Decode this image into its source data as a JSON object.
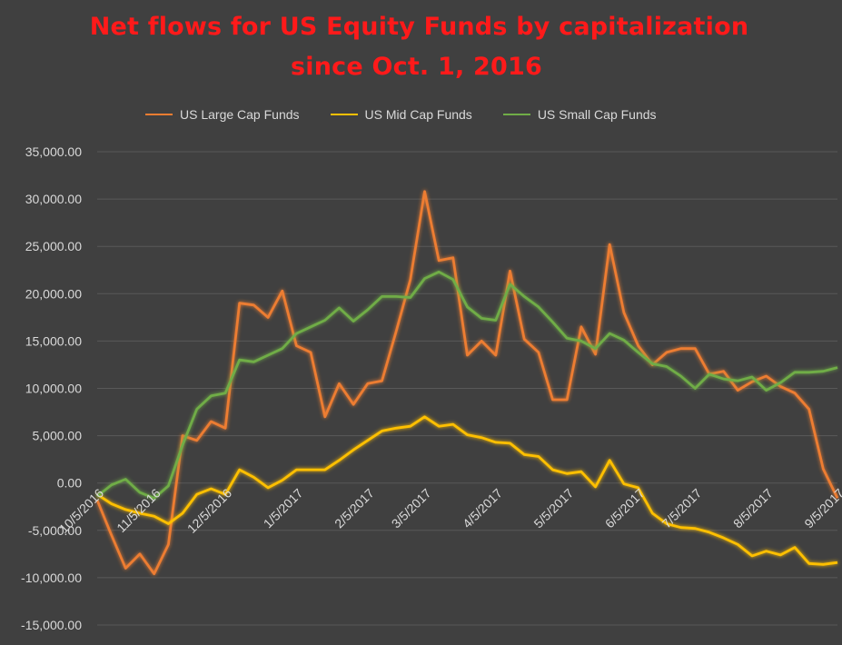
{
  "chart_data": {
    "type": "line",
    "title_line1": "Net flows for US Equity Funds by capitalization",
    "title_line2": "since Oct. 1, 2016",
    "xlabel": "",
    "ylabel": "",
    "ylim": [
      -15000,
      35000
    ],
    "yticks": [
      "35,000.00",
      "30,000.00",
      "25,000.00",
      "20,000.00",
      "15,000.00",
      "10,000.00",
      "5,000.00",
      "0.00",
      "-5,000.00",
      "-10,000.00",
      "-15,000.00"
    ],
    "ytick_values": [
      35000,
      30000,
      25000,
      20000,
      15000,
      10000,
      5000,
      0,
      -5000,
      -10000,
      -15000
    ],
    "grid": true,
    "legend_position": "top",
    "x_tick_labels": [
      "10/5/2016",
      "11/5/2016",
      "12/5/2016",
      "1/5/2017",
      "2/5/2017",
      "3/5/2017",
      "4/5/2017",
      "5/5/2017",
      "6/5/2017",
      "7/5/2017",
      "8/5/2017",
      "9/5/2017"
    ],
    "x_tick_index": [
      0,
      4,
      9,
      14,
      19,
      23,
      28,
      33,
      38,
      42,
      47,
      52
    ],
    "series": [
      {
        "name": "US Large Cap Funds",
        "color": "#ed7d31",
        "values": [
          -1800,
          -5500,
          -9000,
          -7500,
          -9600,
          -6500,
          5000,
          4500,
          6500,
          5800,
          19000,
          18800,
          17500,
          20300,
          14500,
          13800,
          7000,
          10500,
          8300,
          10500,
          10800,
          16000,
          21500,
          30800,
          23500,
          23800,
          13500,
          15000,
          13500,
          22400,
          15200,
          13800,
          8800,
          8800,
          16500,
          13600,
          25200,
          18000,
          14500,
          12500,
          13800,
          14200,
          14200,
          11500,
          11800,
          9800,
          10700,
          11300,
          10200,
          9500,
          7800,
          1500,
          -1600
        ]
      },
      {
        "name": "US Mid Cap Funds",
        "color": "#ffc000",
        "values": [
          -1200,
          -2200,
          -2800,
          -3200,
          -3500,
          -4300,
          -3200,
          -1200,
          -600,
          -1200,
          1400,
          600,
          -500,
          300,
          1400,
          1400,
          1400,
          2400,
          3500,
          4500,
          5500,
          5800,
          6000,
          7000,
          6000,
          6200,
          5100,
          4800,
          4300,
          4200,
          3000,
          2800,
          1400,
          1000,
          1200,
          -400,
          2400,
          -100,
          -500,
          -3200,
          -4300,
          -4700,
          -4800,
          -5200,
          -5800,
          -6500,
          -7700,
          -7200,
          -7600,
          -6800,
          -8500,
          -8600,
          -8400
        ]
      },
      {
        "name": "US Small Cap Funds",
        "color": "#70ad47",
        "values": [
          -1400,
          -200,
          400,
          -1000,
          -1600,
          -300,
          4000,
          7800,
          9200,
          9500,
          13000,
          12800,
          13500,
          14200,
          15800,
          16500,
          17200,
          18500,
          17100,
          18300,
          19700,
          19700,
          19600,
          21600,
          22300,
          21500,
          18600,
          17400,
          17200,
          21000,
          19700,
          18600,
          17000,
          15300,
          15000,
          14200,
          15800,
          15100,
          13800,
          12600,
          12300,
          11300,
          10000,
          11500,
          11000,
          10800,
          11200,
          9800,
          10600,
          11700,
          11700,
          11800,
          12200
        ]
      }
    ]
  }
}
